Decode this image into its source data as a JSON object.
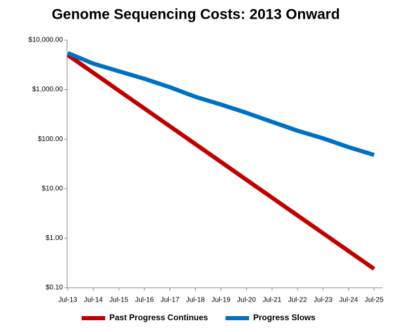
{
  "chart_data": {
    "type": "line",
    "title": "Genome Sequencing Costs: 2013 Onward",
    "categories": [
      "Jul-13",
      "Jul-14",
      "Jul-15",
      "Jul-16",
      "Jul-17",
      "Jul-18",
      "Jul-19",
      "Jul-20",
      "Jul-21",
      "Jul-22",
      "Jul-23",
      "Jul-24",
      "Jul-25"
    ],
    "series": [
      {
        "name": "Past Progress Continues",
        "color": "#c00000",
        "values": [
          5012,
          2188,
          955,
          417,
          182,
          79.4,
          34.7,
          15.1,
          6.6,
          2.88,
          1.26,
          0.55,
          0.24
        ]
      },
      {
        "name": "Progress Slows",
        "color": "#0070c0",
        "values": [
          5500,
          3350,
          2350,
          1660,
          1120,
          716,
          500,
          340,
          224,
          148,
          104,
          69,
          48
        ]
      }
    ],
    "log_scale": true,
    "ylim": [
      0.1,
      10000
    ],
    "yticks": [
      {
        "value": 10000,
        "label": "$10,000.00"
      },
      {
        "value": 1000,
        "label": "$1,000.00"
      },
      {
        "value": 100,
        "label": "$100.00"
      },
      {
        "value": 10,
        "label": "$10.00"
      },
      {
        "value": 1,
        "label": "$1.00"
      },
      {
        "value": 0.1,
        "label": "$0.10"
      }
    ],
    "legend": "bottom"
  }
}
